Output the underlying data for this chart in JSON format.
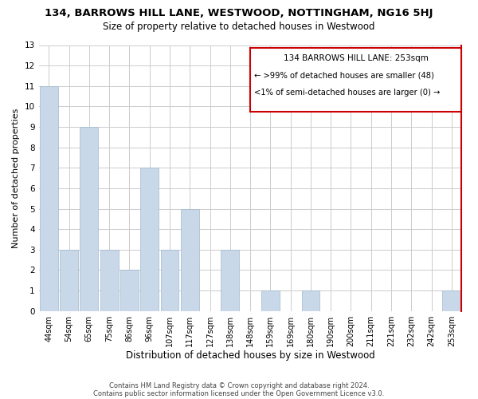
{
  "title": "134, BARROWS HILL LANE, WESTWOOD, NOTTINGHAM, NG16 5HJ",
  "subtitle": "Size of property relative to detached houses in Westwood",
  "xlabel": "Distribution of detached houses by size in Westwood",
  "ylabel": "Number of detached properties",
  "bar_labels": [
    "44sqm",
    "54sqm",
    "65sqm",
    "75sqm",
    "86sqm",
    "96sqm",
    "107sqm",
    "117sqm",
    "127sqm",
    "138sqm",
    "148sqm",
    "159sqm",
    "169sqm",
    "180sqm",
    "190sqm",
    "200sqm",
    "211sqm",
    "221sqm",
    "232sqm",
    "242sqm",
    "253sqm"
  ],
  "bar_values": [
    11,
    3,
    9,
    3,
    2,
    7,
    3,
    5,
    0,
    3,
    0,
    1,
    0,
    1,
    0,
    0,
    0,
    0,
    0,
    0,
    1
  ],
  "bar_color": "#c8d8e8",
  "bar_edge_color": "#a0b8cc",
  "ylim": [
    0,
    13
  ],
  "yticks": [
    0,
    1,
    2,
    3,
    4,
    5,
    6,
    7,
    8,
    9,
    10,
    11,
    12,
    13
  ],
  "legend_title": "134 BARROWS HILL LANE: 253sqm",
  "legend_line1": "← >99% of detached houses are smaller (48)",
  "legend_line2": "<1% of semi-detached houses are larger (0) →",
  "legend_box_color": "#ffffff",
  "legend_box_edge_color": "#cc0000",
  "footnote1": "Contains HM Land Registry data © Crown copyright and database right 2024.",
  "footnote2": "Contains public sector information licensed under the Open Government Licence v3.0.",
  "grid_color": "#cccccc",
  "bg_color": "#ffffff",
  "title_fontsize": 9.5,
  "subtitle_fontsize": 8.5,
  "xlabel_fontsize": 8.5,
  "ylabel_fontsize": 8,
  "tick_fontsize": 7.5,
  "xtick_fontsize": 7
}
